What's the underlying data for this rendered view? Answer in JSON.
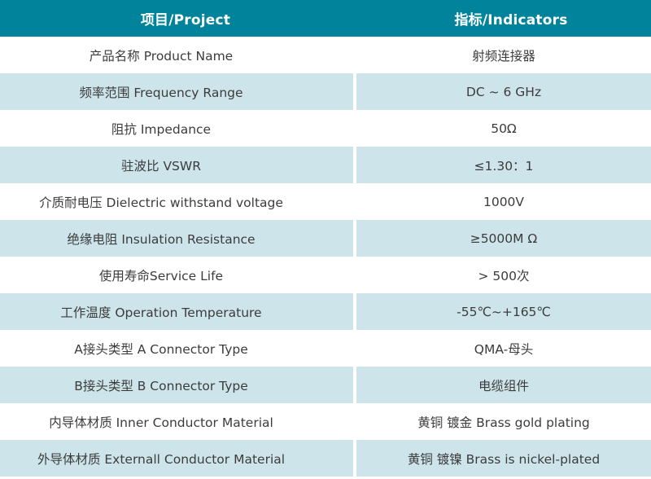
{
  "header": {
    "project": "项目/Project",
    "indicators": "指标/Indicators"
  },
  "rows": [
    {
      "label": "产品名称 Product Name",
      "value": "射频连接器",
      "shaded": false
    },
    {
      "label": "频率范围 Frequency Range",
      "value": "DC ~ 6 GHz",
      "shaded": true
    },
    {
      "label": "阻抗 Impedance",
      "value": "50Ω",
      "shaded": false
    },
    {
      "label": "驻波比 VSWR",
      "value": "≤1.30：1",
      "shaded": true
    },
    {
      "label": "介质耐电压 Dielectric withstand voltage",
      "value": "1000V",
      "shaded": false
    },
    {
      "label": "绝缘电阻 Insulation Resistance",
      "value": "≥5000M Ω",
      "shaded": true
    },
    {
      "label": "使用寿命Service Life",
      "value": "> 500次",
      "shaded": false
    },
    {
      "label": "工作温度 Operation Temperature",
      "value": "-55℃~+165℃",
      "shaded": true
    },
    {
      "label": "A接头类型 A Connector Type",
      "value": "QMA-母头",
      "shaded": false
    },
    {
      "label": "B接头类型 B Connector Type",
      "value": "电缆组件",
      "shaded": true
    },
    {
      "label": "内导体材质 Inner Conductor Material",
      "value": "黄铜 镀金 Brass gold plating",
      "shaded": false
    },
    {
      "label": "外导体材质 Externall Conductor Material",
      "value": "黄铜 镀镍 Brass is nickel-plated",
      "shaded": true
    }
  ],
  "colors": {
    "header_bg": "#00839b",
    "header_text": "#ffffff",
    "shaded_row_bg": "#cde5ea",
    "body_text": "#3c3c3c"
  }
}
